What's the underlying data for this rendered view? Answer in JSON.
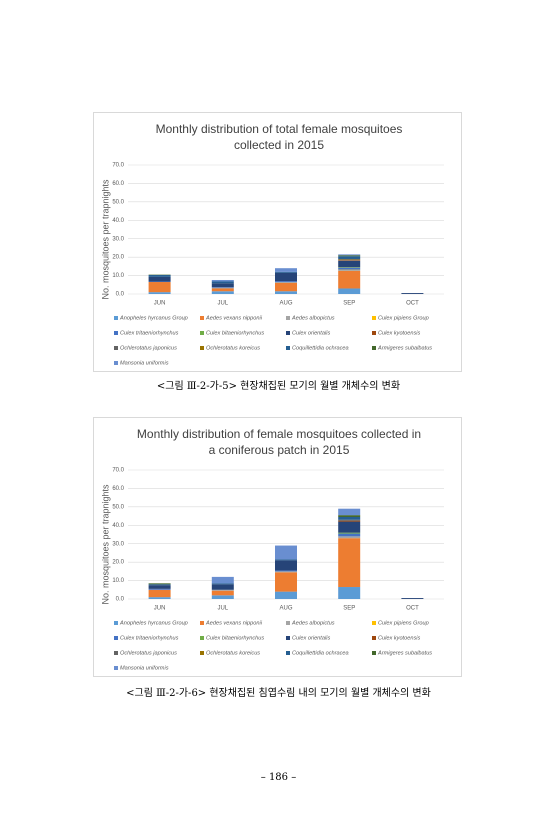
{
  "chart_data": [
    {
      "type": "bar",
      "stacked": true,
      "title": "Monthly distribution of total female mosquitoes collected in 2015",
      "y_label": "No. mosquitoes per trapnights",
      "categories": [
        "JUN",
        "JUL",
        "AUG",
        "SEP",
        "OCT"
      ],
      "ylim": [
        0,
        70
      ],
      "yticks": [
        {
          "value": 0,
          "label": "0.0"
        },
        {
          "value": 10,
          "label": "10.0"
        },
        {
          "value": 20,
          "label": "20.0"
        },
        {
          "value": 30,
          "label": "30.0"
        },
        {
          "value": 40,
          "label": "40.0"
        },
        {
          "value": 50,
          "label": "50.0"
        },
        {
          "value": 60,
          "label": "60.0"
        },
        {
          "value": 70,
          "label": "70.0"
        }
      ],
      "grid": true,
      "series": [
        {
          "name": "Anopheles hyrcanus Group",
          "color": "#5b9bd5",
          "values": [
            1.0,
            1.5,
            1.5,
            3.0,
            0
          ]
        },
        {
          "name": "Aedes vexans nipponii",
          "color": "#ed7d31",
          "values": [
            5.5,
            1.5,
            4.5,
            9.5,
            0
          ]
        },
        {
          "name": "Aedes albopictus",
          "color": "#a5a5a5",
          "values": [
            0,
            0.5,
            0.5,
            0.5,
            0
          ]
        },
        {
          "name": "Culex pipiens Group",
          "color": "#ffc000",
          "values": [
            0,
            0,
            0,
            0.2,
            0
          ]
        },
        {
          "name": "Culex tritaeniorhynchus",
          "color": "#4472c4",
          "values": [
            0.3,
            0.3,
            0.5,
            1.0,
            0
          ]
        },
        {
          "name": "Culex bitaeniorhynchus",
          "color": "#70ad47",
          "values": [
            0,
            0,
            0,
            0.3,
            0
          ]
        },
        {
          "name": "Culex orientalis",
          "color": "#264478",
          "values": [
            2.5,
            2.0,
            4.5,
            3.5,
            0.5
          ]
        },
        {
          "name": "Culex kyotoensis",
          "color": "#9e480e",
          "values": [
            0,
            0,
            0,
            0.3,
            0
          ]
        },
        {
          "name": "Ochlerotatus japonicus",
          "color": "#636363",
          "values": [
            0,
            0,
            0,
            0.5,
            0
          ]
        },
        {
          "name": "Ochlerotatus koreicus",
          "color": "#997300",
          "values": [
            0,
            0,
            0,
            0.2,
            0
          ]
        },
        {
          "name": "Coquillettidia ochracea",
          "color": "#255e91",
          "values": [
            1.0,
            1.0,
            0.5,
            1.5,
            0
          ]
        },
        {
          "name": "Armigeres subalbatus",
          "color": "#43682b",
          "values": [
            0.2,
            0,
            0,
            0.5,
            0
          ]
        },
        {
          "name": "Mansonia uniformis",
          "color": "#698ed0",
          "values": [
            0,
            0.8,
            2.0,
            0.5,
            0
          ]
        }
      ]
    },
    {
      "type": "bar",
      "stacked": true,
      "title": "Monthly distribution of female mosquitoes collected in a coniferous patch in 2015",
      "y_label": "No. mosquitoes per trapnights",
      "categories": [
        "JUN",
        "JUL",
        "AUG",
        "SEP",
        "OCT"
      ],
      "ylim": [
        0,
        70
      ],
      "yticks": [
        {
          "value": 0,
          "label": "0.0"
        },
        {
          "value": 10,
          "label": "10.0"
        },
        {
          "value": 20,
          "label": "20.0"
        },
        {
          "value": 30,
          "label": "30.0"
        },
        {
          "value": 40,
          "label": "40.0"
        },
        {
          "value": 50,
          "label": "50.0"
        },
        {
          "value": 60,
          "label": "60.0"
        },
        {
          "value": 70,
          "label": "70.0"
        }
      ],
      "grid": true,
      "series": [
        {
          "name": "Anopheles hyrcanus Group",
          "color": "#5b9bd5",
          "values": [
            1.0,
            2.0,
            4.0,
            6.5,
            0
          ]
        },
        {
          "name": "Aedes vexans nipponii",
          "color": "#ed7d31",
          "values": [
            4.0,
            2.5,
            10.5,
            26.5,
            0
          ]
        },
        {
          "name": "Aedes albopictus",
          "color": "#a5a5a5",
          "values": [
            0,
            0.5,
            0.5,
            1.0,
            0
          ]
        },
        {
          "name": "Culex pipiens Group",
          "color": "#ffc000",
          "values": [
            0,
            0,
            0,
            0,
            0
          ]
        },
        {
          "name": "Culex tritaeniorhynchus",
          "color": "#4472c4",
          "values": [
            0.5,
            0,
            0.5,
            1.5,
            0
          ]
        },
        {
          "name": "Culex bitaeniorhynchus",
          "color": "#70ad47",
          "values": [
            0,
            0,
            0,
            0.5,
            0
          ]
        },
        {
          "name": "Culex orientalis",
          "color": "#264478",
          "values": [
            2.0,
            3.0,
            5.5,
            6.0,
            0.5
          ]
        },
        {
          "name": "Culex kyotoensis",
          "color": "#9e480e",
          "values": [
            0,
            0,
            0,
            0.5,
            0
          ]
        },
        {
          "name": "Ochlerotatus japonicus",
          "color": "#636363",
          "values": [
            0,
            0,
            0,
            0.5,
            0
          ]
        },
        {
          "name": "Ochlerotatus koreicus",
          "color": "#997300",
          "values": [
            0,
            0,
            0,
            0,
            0
          ]
        },
        {
          "name": "Coquillettidia ochracea",
          "color": "#255e91",
          "values": [
            0.5,
            0.5,
            0.5,
            1.5,
            0
          ]
        },
        {
          "name": "Armigeres subalbatus",
          "color": "#43682b",
          "values": [
            0.5,
            0,
            0,
            1.0,
            0
          ]
        },
        {
          "name": "Mansonia uniformis",
          "color": "#698ed0",
          "values": [
            0,
            3.5,
            7.5,
            3.5,
            0
          ]
        }
      ]
    }
  ],
  "captions": [
    "<그림 Ⅲ-2-가-5> 현장채집된 모기의 월별 개체수의 변화",
    "<그림 Ⅲ-2-가-6> 현장채집된 침엽수림 내의 모기의 월별 개체수의 변화"
  ],
  "page_number": "– 186 –"
}
